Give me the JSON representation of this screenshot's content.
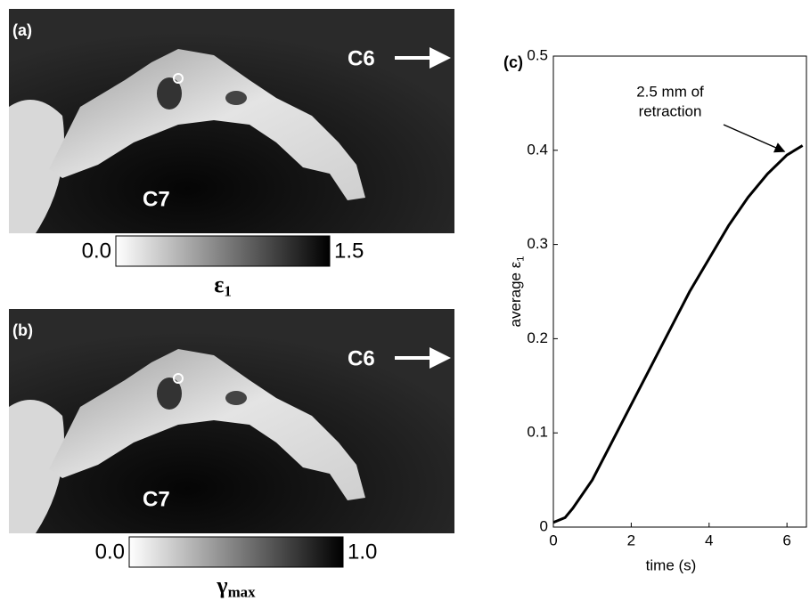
{
  "panels": [
    {
      "label": "(a)",
      "top_label": "C6",
      "bottom_label": "C7",
      "scale_min": "0.0",
      "scale_max": "1.5",
      "symbol": "ε",
      "symbol_sub": "1"
    },
    {
      "label": "(b)",
      "top_label": "C6",
      "bottom_label": "C7",
      "scale_min": "0.0",
      "scale_max": "1.0",
      "symbol": "γ",
      "symbol_sub": "max"
    }
  ],
  "chart_data": {
    "type": "line",
    "panel_label": "(c)",
    "x_label": "time (s)",
    "y_label": "average ε",
    "y_label_sub": "1",
    "annotation": [
      "2.5 mm of",
      "retraction"
    ],
    "x": [
      0,
      0.3,
      0.5,
      1,
      1.5,
      2,
      2.5,
      3,
      3.5,
      4,
      4.5,
      5,
      5.5,
      6,
      6.4
    ],
    "series": [
      {
        "color": "#000000",
        "values": [
          0.005,
          0.01,
          0.02,
          0.05,
          0.09,
          0.13,
          0.17,
          0.21,
          0.25,
          0.285,
          0.32,
          0.35,
          0.375,
          0.395,
          0.405
        ]
      }
    ],
    "xlim": [
      0,
      6.5
    ],
    "xticks": [
      0,
      2,
      4,
      6
    ],
    "ylim": [
      0,
      0.5
    ],
    "yticks": [
      0,
      0.1,
      0.2,
      0.3,
      0.4,
      0.5
    ]
  }
}
